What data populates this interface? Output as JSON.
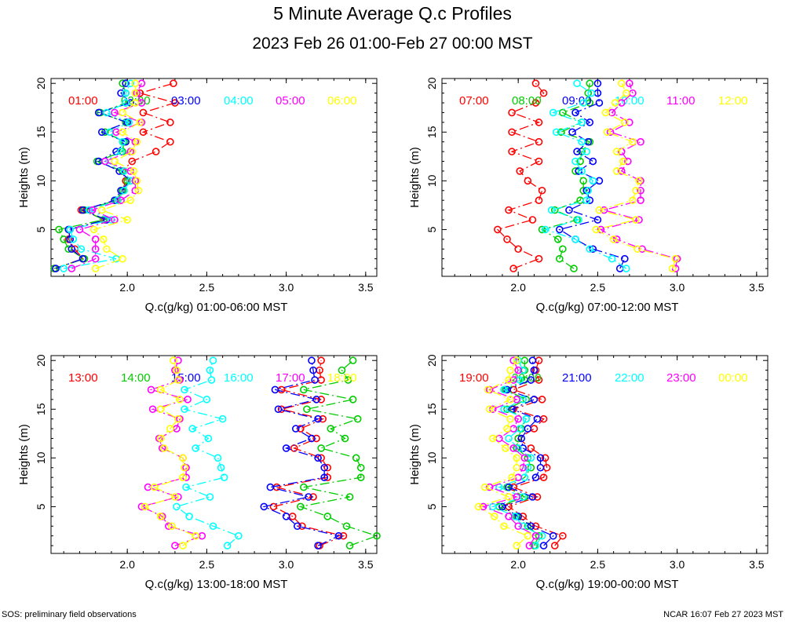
{
  "title": "5 Minute Average Q.c Profiles",
  "subtitle": "2023 Feb 26 01:00-Feb 27 00:00 MST",
  "footer_left": "SOS: preliminary field observations",
  "footer_right": "NCAR 16:07 Feb 27 2023 MST",
  "colors": [
    "#ff0000",
    "#00cc00",
    "#0000ff",
    "#00ffff",
    "#ff00ff",
    "#ffff00"
  ],
  "chart_data": [
    {
      "type": "line",
      "xlabel": "Q.c(g/kg) 01:00-06:00 MST",
      "ylabel": "Heights (m)",
      "xlim": [
        1.52,
        3.57
      ],
      "ylim": [
        0.2,
        20.5
      ],
      "xticks": [
        2.0,
        2.5,
        3.0,
        3.5
      ],
      "yticks": [
        5,
        10,
        15,
        20
      ],
      "heights": [
        1,
        2,
        3,
        4,
        5,
        6,
        7,
        8,
        9,
        10,
        11,
        12,
        13,
        14,
        15,
        16,
        17,
        18,
        19,
        20
      ],
      "series": [
        {
          "name": "01:00",
          "values": [
            1.54,
            1.72,
            1.67,
            1.63,
            1.64,
            1.86,
            1.71,
            1.94,
            1.97,
            1.99,
            1.97,
            2.03,
            2.18,
            2.27,
            2.1,
            2.27,
            2.1,
            2.3,
            2.08,
            2.29
          ]
        },
        {
          "name": "02:00",
          "values": [
            1.54,
            1.73,
            1.63,
            1.6,
            1.57,
            1.85,
            1.73,
            1.93,
            1.97,
            2.0,
            1.97,
            1.81,
            1.97,
            1.98,
            1.86,
            1.99,
            1.83,
            1.99,
            1.99,
            1.97
          ]
        },
        {
          "name": "03:00",
          "values": [
            1.55,
            1.72,
            1.65,
            1.64,
            1.63,
            1.87,
            1.72,
            1.92,
            1.96,
            2.02,
            1.95,
            1.82,
            1.93,
            1.99,
            1.84,
            2.0,
            1.82,
            2.02,
            1.96,
            1.99
          ]
        },
        {
          "name": "04:00",
          "values": [
            1.6,
            1.93,
            1.71,
            1.66,
            1.64,
            1.9,
            1.76,
            1.94,
            1.98,
            2.02,
            1.98,
            1.86,
            1.96,
            1.97,
            1.89,
            2.01,
            1.87,
            1.99,
            1.99,
            2.02
          ]
        },
        {
          "name": "05:00",
          "values": [
            1.65,
            1.8,
            1.8,
            1.8,
            1.7,
            1.92,
            1.78,
            1.96,
            2.05,
            2.05,
            2.02,
            1.86,
            2.02,
            2.05,
            1.93,
            2.09,
            1.92,
            2.09,
            2.06,
            2.09
          ]
        },
        {
          "name": "06:00",
          "values": [
            1.8,
            1.97,
            1.87,
            1.85,
            1.79,
            2.0,
            1.84,
            2.02,
            2.07,
            2.06,
            2.04,
            1.92,
            2.03,
            2.06,
            1.97,
            2.08,
            1.97,
            2.05,
            2.05,
            2.05
          ]
        }
      ]
    },
    {
      "type": "line",
      "xlabel": "Q.c(g/kg) 07:00-12:00 MST",
      "ylabel": "Heights (m)",
      "xlim": [
        1.52,
        3.57
      ],
      "ylim": [
        0.2,
        20.5
      ],
      "xticks": [
        2.0,
        2.5,
        3.0,
        3.5
      ],
      "yticks": [
        5,
        10,
        15,
        20
      ],
      "heights": [
        1,
        2,
        3,
        4,
        5,
        6,
        7,
        8,
        9,
        10,
        11,
        12,
        13,
        14,
        15,
        16,
        17,
        18,
        19,
        20
      ],
      "series": [
        {
          "name": "07:00",
          "values": [
            1.97,
            2.13,
            2.0,
            1.93,
            1.87,
            2.09,
            1.94,
            2.13,
            2.15,
            2.06,
            2.01,
            2.13,
            1.96,
            2.13,
            1.96,
            2.13,
            1.96,
            2.11,
            2.16,
            2.11
          ]
        },
        {
          "name": "08:00",
          "values": [
            2.35,
            2.26,
            2.28,
            2.25,
            2.15,
            2.37,
            2.23,
            2.39,
            2.41,
            2.41,
            2.36,
            2.39,
            2.4,
            2.45,
            2.27,
            2.4,
            2.28,
            2.45,
            2.44,
            2.45
          ]
        },
        {
          "name": "09:00",
          "values": [
            2.64,
            2.67,
            2.47,
            2.36,
            2.26,
            2.5,
            2.32,
            2.45,
            2.43,
            2.51,
            2.38,
            2.47,
            2.37,
            2.44,
            2.34,
            2.45,
            2.36,
            2.51,
            2.5,
            2.5
          ]
        },
        {
          "name": "10:00",
          "values": [
            2.68,
            2.59,
            2.45,
            2.36,
            2.17,
            2.38,
            2.21,
            2.43,
            2.44,
            2.47,
            2.4,
            2.36,
            2.43,
            2.4,
            2.24,
            2.4,
            2.22,
            2.41,
            2.46,
            2.37
          ]
        },
        {
          "name": "11:00",
          "values": [
            2.99,
            3.0,
            2.78,
            2.62,
            2.52,
            2.76,
            2.54,
            2.77,
            2.77,
            2.77,
            2.65,
            2.69,
            2.65,
            2.77,
            2.58,
            2.7,
            2.59,
            2.65,
            2.72,
            2.7
          ]
        },
        {
          "name": "12:00",
          "values": [
            2.97,
            2.99,
            2.75,
            2.6,
            2.49,
            2.74,
            2.51,
            2.72,
            2.74,
            2.76,
            2.62,
            2.66,
            2.62,
            2.72,
            2.56,
            2.67,
            2.55,
            2.61,
            2.68,
            2.65
          ]
        }
      ]
    },
    {
      "type": "line",
      "xlabel": "Q.c(g/kg) 13:00-18:00 MST",
      "ylabel": "Heights (m)",
      "xlim": [
        1.52,
        3.57
      ],
      "ylim": [
        0.2,
        20.5
      ],
      "xticks": [
        2.0,
        2.5,
        3.0,
        3.5
      ],
      "yticks": [
        5,
        10,
        15,
        20
      ],
      "heights": [
        1,
        2,
        3,
        4,
        5,
        6,
        7,
        8,
        9,
        10,
        11,
        12,
        13,
        14,
        15,
        16,
        17,
        18,
        19,
        20
      ],
      "series": [
        {
          "name": "13:00",
          "values": [
            3.21,
            3.36,
            3.1,
            3.04,
            2.92,
            3.17,
            2.94,
            3.26,
            3.26,
            3.22,
            3.05,
            3.19,
            3.09,
            3.23,
            2.97,
            3.22,
            2.97,
            3.22,
            3.21,
            3.22
          ]
        },
        {
          "name": "14:00",
          "values": [
            3.4,
            3.57,
            3.38,
            3.26,
            3.09,
            3.4,
            3.11,
            3.47,
            3.47,
            3.44,
            3.22,
            3.37,
            3.28,
            3.45,
            3.13,
            3.42,
            3.11,
            3.39,
            3.35,
            3.42
          ]
        },
        {
          "name": "15:00",
          "values": [
            3.2,
            3.33,
            3.07,
            3.0,
            2.86,
            3.14,
            2.9,
            3.24,
            3.24,
            3.2,
            3.0,
            3.16,
            3.06,
            3.2,
            2.95,
            3.19,
            2.93,
            3.18,
            3.17,
            3.16
          ]
        },
        {
          "name": "16:00",
          "values": [
            2.63,
            2.7,
            2.54,
            2.39,
            2.31,
            2.52,
            2.37,
            2.61,
            2.59,
            2.57,
            2.43,
            2.51,
            2.41,
            2.6,
            2.36,
            2.5,
            2.36,
            2.53,
            2.52,
            2.54
          ]
        },
        {
          "name": "17:00",
          "values": [
            2.3,
            2.47,
            2.26,
            2.22,
            2.09,
            2.32,
            2.13,
            2.37,
            2.37,
            2.35,
            2.22,
            2.2,
            2.31,
            2.33,
            2.16,
            2.38,
            2.15,
            2.33,
            2.3,
            2.32
          ]
        },
        {
          "name": "18:00",
          "values": [
            2.35,
            2.43,
            2.28,
            2.21,
            2.11,
            2.3,
            2.17,
            2.35,
            2.36,
            2.35,
            2.23,
            2.21,
            2.27,
            2.32,
            2.21,
            2.33,
            2.21,
            2.32,
            2.31,
            2.29
          ]
        }
      ]
    },
    {
      "type": "line",
      "xlabel": "Q.c(g/kg) 19:00-00:00 MST",
      "ylabel": "Heights (m)",
      "xlim": [
        1.52,
        3.57
      ],
      "ylim": [
        0.2,
        20.5
      ],
      "xticks": [
        2.0,
        2.5,
        3.0,
        3.5
      ],
      "yticks": [
        5,
        10,
        15,
        20
      ],
      "heights": [
        1,
        2,
        3,
        4,
        5,
        6,
        7,
        8,
        9,
        10,
        11,
        12,
        13,
        14,
        15,
        16,
        17,
        18,
        19,
        20
      ],
      "series": [
        {
          "name": "19:00",
          "values": [
            2.23,
            2.28,
            2.11,
            2.03,
            1.94,
            2.12,
            1.97,
            2.16,
            2.18,
            2.17,
            2.08,
            2.0,
            2.1,
            2.16,
            1.97,
            2.15,
            1.97,
            2.13,
            2.11,
            2.13
          ]
        },
        {
          "name": "20:00",
          "values": [
            2.1,
            2.13,
            2.06,
            1.99,
            1.88,
            2.04,
            1.93,
            2.04,
            2.08,
            2.06,
            1.99,
            2.0,
            2.02,
            2.05,
            1.93,
            2.05,
            1.92,
            2.04,
            2.04,
            2.04
          ]
        },
        {
          "name": "21:00",
          "values": [
            2.16,
            2.22,
            2.08,
            2.0,
            1.9,
            2.09,
            1.94,
            2.11,
            2.14,
            2.14,
            2.03,
            2.02,
            2.06,
            2.12,
            1.96,
            2.1,
            1.93,
            2.08,
            2.1,
            2.09
          ]
        },
        {
          "name": "22:00",
          "values": [
            2.11,
            2.15,
            2.03,
            1.98,
            1.84,
            2.03,
            1.88,
            2.04,
            2.06,
            2.08,
            2.0,
            1.94,
            2.01,
            2.05,
            1.91,
            2.03,
            1.91,
            2.01,
            2.03,
            2.0
          ]
        },
        {
          "name": "23:00",
          "values": [
            2.07,
            2.11,
            2.0,
            1.94,
            1.78,
            1.99,
            1.82,
            2.0,
            2.03,
            2.04,
            1.97,
            1.88,
            1.97,
            2.0,
            1.84,
            1.99,
            1.82,
            1.97,
            2.0,
            1.97
          ]
        },
        {
          "name": "00:00",
          "values": [
            1.99,
            2.06,
            1.91,
            1.85,
            1.75,
            1.94,
            1.79,
            1.96,
            1.99,
            1.99,
            1.92,
            1.84,
            1.93,
            1.95,
            1.82,
            1.95,
            1.81,
            1.94,
            1.95,
            1.99
          ]
        }
      ]
    }
  ]
}
